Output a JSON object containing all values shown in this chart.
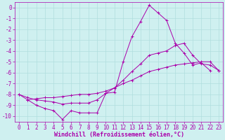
{
  "xlabel": "Windchill (Refroidissement éolien,°C)",
  "background_color": "#cff0f0",
  "grid_color": "#b0dede",
  "line_color": "#aa00aa",
  "x_ticks": [
    0,
    1,
    2,
    3,
    4,
    5,
    6,
    7,
    8,
    9,
    10,
    11,
    12,
    13,
    14,
    15,
    16,
    17,
    18,
    19,
    20,
    21,
    22,
    23
  ],
  "y_ticks": [
    0,
    -1,
    -2,
    -3,
    -4,
    -5,
    -6,
    -7,
    -8,
    -9,
    -10
  ],
  "ylim": [
    -10.5,
    0.5
  ],
  "xlim": [
    -0.5,
    23.5
  ],
  "series": [
    [
      null,
      -8.5,
      -9.0,
      -9.3,
      -9.5,
      -10.3,
      -9.5,
      -9.7,
      -9.7,
      -9.7,
      -7.9,
      -7.8,
      -5.0,
      -2.7,
      -1.3,
      0.2,
      -0.5,
      -1.2,
      -3.3,
      -4.2,
      -5.3,
      -5.1,
      -5.8,
      null
    ],
    [
      -8.0,
      -8.5,
      -8.4,
      -8.3,
      -8.3,
      -8.2,
      -8.1,
      -8.0,
      -8.0,
      -7.9,
      -7.7,
      -7.4,
      -7.0,
      -6.7,
      -6.3,
      -5.9,
      -5.7,
      -5.5,
      -5.3,
      -5.2,
      -5.1,
      -5.0,
      -5.0,
      -5.8
    ],
    [
      -8.0,
      -8.3,
      -8.5,
      -8.6,
      -8.7,
      -8.9,
      -8.8,
      -8.8,
      -8.8,
      -8.5,
      -7.9,
      -7.4,
      -6.7,
      -5.9,
      -5.2,
      -4.4,
      -4.2,
      -4.0,
      -3.5,
      -3.3,
      -4.4,
      -5.2,
      -5.3,
      -5.8
    ]
  ],
  "tick_fontsize": 5.5,
  "xlabel_fontsize": 6.0
}
